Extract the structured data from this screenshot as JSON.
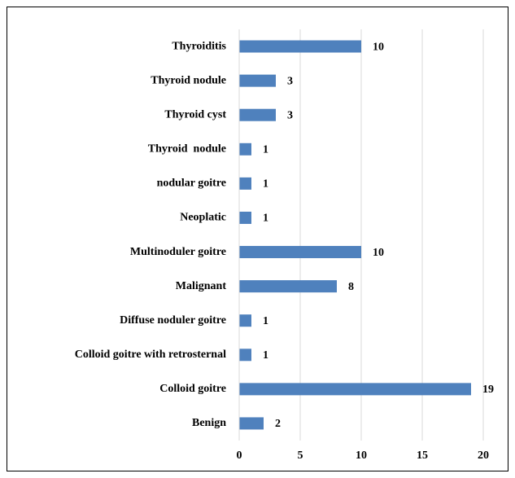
{
  "chart_data": {
    "type": "bar",
    "orientation": "horizontal",
    "categories": [
      "Thyroiditis",
      "Thyroid nodule",
      "Thyroid cyst",
      "Thyroid  nodule",
      "nodular goitre",
      "Neoplatic",
      "Multinoduler goitre",
      "Malignant",
      "Diffuse noduler goitre",
      "Colloid goitre with retrosternal",
      "Colloid goitre",
      "Benign"
    ],
    "values": [
      10,
      3,
      3,
      1,
      1,
      1,
      10,
      8,
      1,
      1,
      19,
      2
    ],
    "color": "#4f81bd",
    "xlim": [
      0,
      20
    ],
    "xticks": [
      0,
      5,
      10,
      15,
      20
    ],
    "grid": true
  }
}
